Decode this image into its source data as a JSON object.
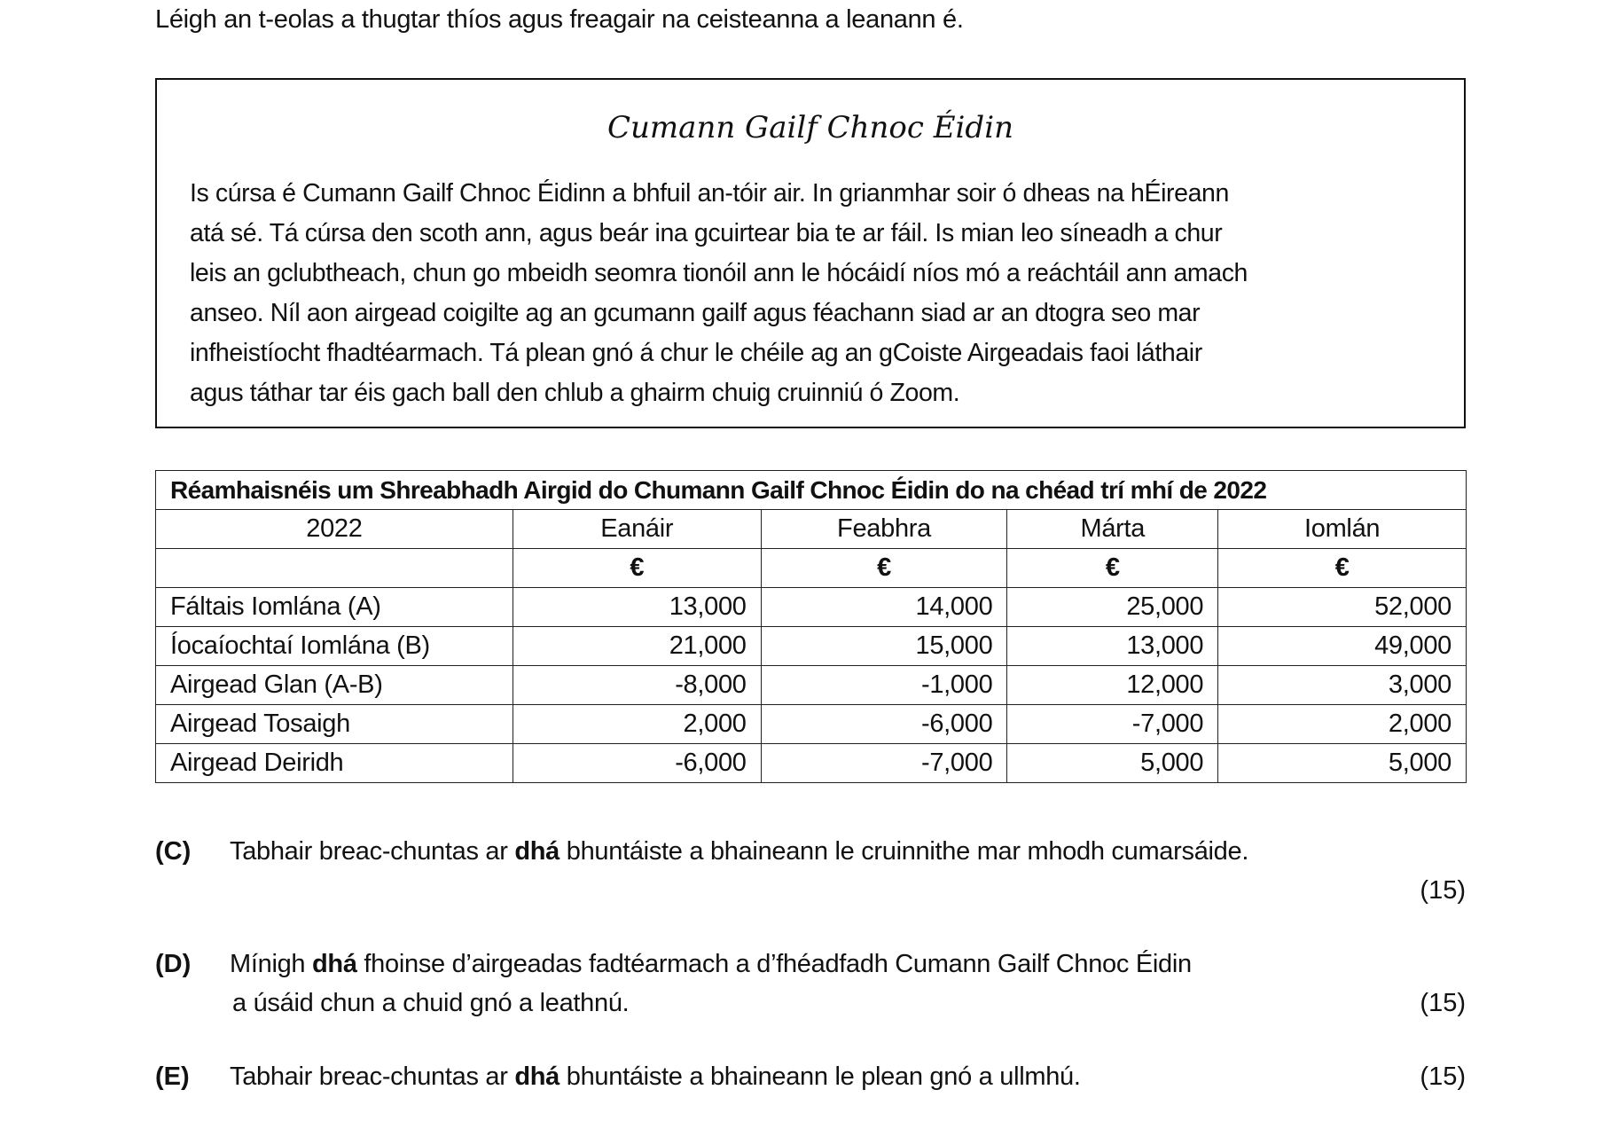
{
  "intro": "Léigh an t-eolas a thugtar thíos agus freagair na ceisteanna a leanann é.",
  "box": {
    "title": "Cumann Gailf Chnoc Éidin",
    "lines": [
      "Is cúrsa é Cumann Gailf Chnoc Éidinn a bhfuil an-tóir air. In grianmhar soir ó dheas na hÉireann",
      "atá sé.  Tá cúrsa den scoth ann, agus beár ina gcuirtear bia te ar fáil.  Is mian leo síneadh a chur",
      "leis an gclubtheach, chun go mbeidh seomra tionóil ann le hócáidí níos mó a reáchtáil ann amach",
      "anseo.  Níl aon airgead coigilte ag an gcumann gailf agus féachann siad ar an dtogra seo mar",
      "infheistíocht fhadtéarmach.  Tá plean gnó á chur le chéile ag an gCoiste Airgeadais faoi láthair",
      "agus táthar tar éis  gach ball den chlub a ghairm chuig cruinniú ó Zoom."
    ]
  },
  "table": {
    "caption": "Réamhaisnéis um Shreabhadh Airgid do Chumann Gailf Chnoc Éidin do na chéad trí mhí de 2022",
    "headers": [
      "2022",
      "Eanáir",
      "Feabhra",
      "Márta",
      "Iomlán"
    ],
    "currency": [
      "",
      "€",
      "€",
      "€",
      "€"
    ],
    "rows": [
      [
        "Fáltais Iomlána (A)",
        "13,000",
        "14,000",
        "25,000",
        "52,000"
      ],
      [
        "Íocaíochtaí Iomlána (B)",
        "21,000",
        "15,000",
        "13,000",
        "49,000"
      ],
      [
        "Airgead Glan (A-B)",
        "-8,000",
        "-1,000",
        "12,000",
        "3,000"
      ],
      [
        "Airgead Tosaigh",
        "2,000",
        "-6,000",
        "-7,000",
        "2,000"
      ],
      [
        "Airgead Deiridh",
        "-6,000",
        "-7,000",
        "5,000",
        "5,000"
      ]
    ]
  },
  "questions": [
    {
      "label": "(C)",
      "pre": "Tabhair breac-chuntas ar ",
      "bold": "dhá",
      "post": " bhuntáiste a bhaineann le cruinnithe mar mhodh cumarsáide.",
      "line2": "",
      "marks": "(15)"
    },
    {
      "label": "(D)",
      "pre": "Mínigh ",
      "bold": "dhá",
      "post": " fhoinse d’airgeadas fadtéarmach a d’fhéadfadh Cumann Gailf Chnoc Éidin",
      "line2": "a úsáid chun a chuid gnó a leathnú.",
      "marks": "(15)"
    },
    {
      "label": "(E)",
      "pre": "Tabhair breac-chuntas ar ",
      "bold": "dhá",
      "post": " bhuntáiste a bhaineann le plean gnó a ullmhú.",
      "line2": "",
      "marks": "(15)"
    }
  ]
}
